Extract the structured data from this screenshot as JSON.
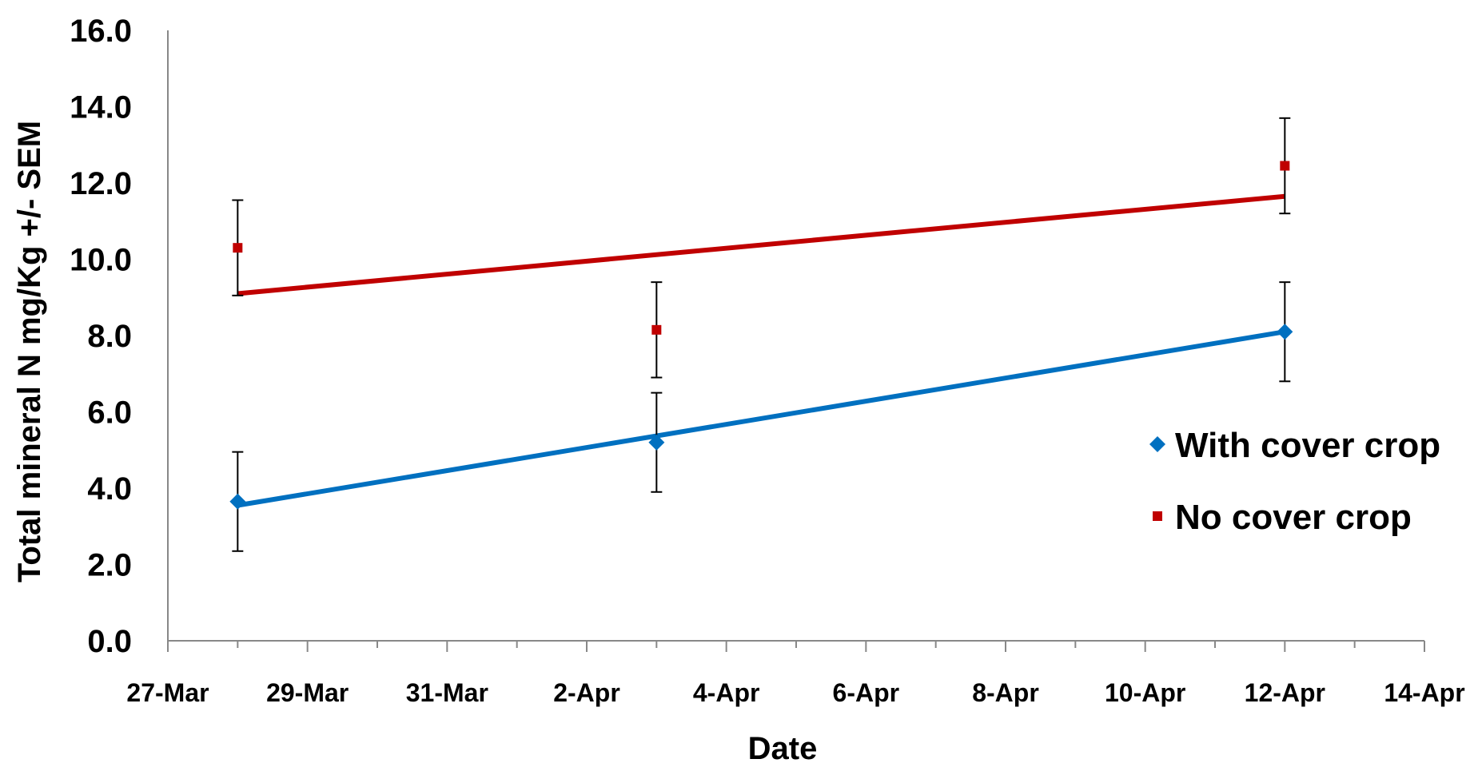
{
  "chart_data": {
    "type": "scatter",
    "xlabel": "Date",
    "ylabel": "Total mineral N mg/Kg +/- SEM",
    "xlim": [
      "27-Mar",
      "14-Apr"
    ],
    "ylim": [
      0,
      16
    ],
    "y_ticks": [
      "0.0",
      "2.0",
      "4.0",
      "6.0",
      "8.0",
      "10.0",
      "12.0",
      "14.0",
      "16.0"
    ],
    "x_ticks": [
      "27-Mar",
      "29-Mar",
      "31-Mar",
      "2-Apr",
      "4-Apr",
      "6-Apr",
      "8-Apr",
      "10-Apr",
      "12-Apr",
      "14-Apr"
    ],
    "legend_position": "right",
    "grid": false,
    "series": [
      {
        "name": "With cover crop",
        "color": "#0070C0",
        "marker": "diamond",
        "x": [
          "28-Mar",
          "3-Apr",
          "12-Apr"
        ],
        "y": [
          3.65,
          5.2,
          8.1
        ],
        "error": [
          1.3,
          1.3,
          1.3
        ],
        "trendline": {
          "from": [
            "28-Mar",
            3.55
          ],
          "to": [
            "12-Apr",
            8.1
          ]
        }
      },
      {
        "name": "No cover crop",
        "color": "#C00000",
        "marker": "square",
        "x": [
          "28-Mar",
          "3-Apr",
          "12-Apr"
        ],
        "y": [
          10.3,
          8.15,
          12.45
        ],
        "error": [
          1.25,
          1.25,
          1.25
        ],
        "trendline": {
          "from": [
            "28-Mar",
            9.1
          ],
          "to": [
            "12-Apr",
            11.65
          ]
        }
      }
    ]
  }
}
